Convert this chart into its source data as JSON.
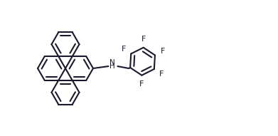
{
  "bg": "#ffffff",
  "lc": "#1a1a2e",
  "lw": 1.5,
  "dbo": 0.06,
  "figsize": [
    3.91,
    1.91
  ],
  "xlim": [
    0,
    3.91
  ],
  "ylim": [
    0,
    1.91
  ]
}
